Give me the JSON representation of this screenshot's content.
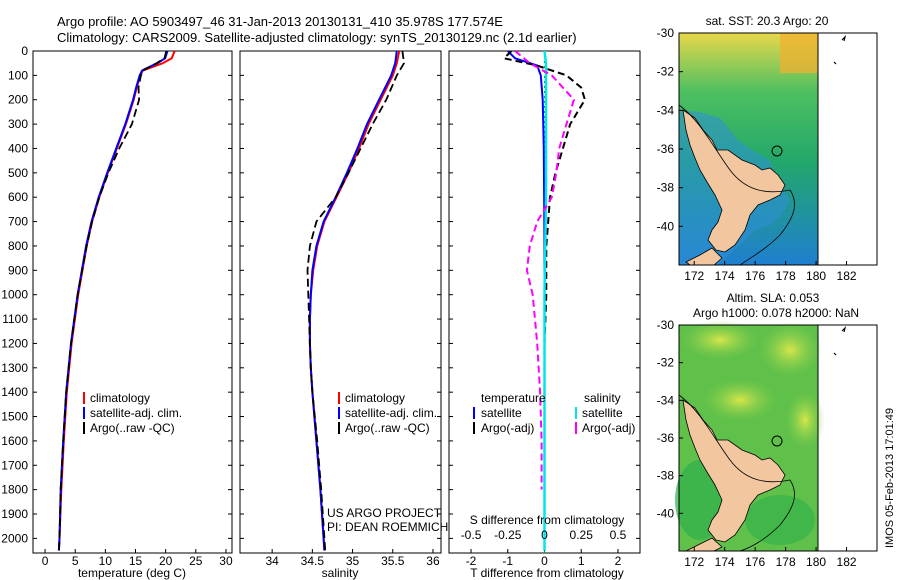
{
  "header": {
    "line1": "Argo profile: AO 5903497_46 31-Jan-2013 20130131_410 35.978S 177.574E",
    "line2": "Climatology: CARS2009. Satellite-adjusted climatology: synTS_20130129.nc (2.1d earlier)"
  },
  "colors": {
    "climatology": "#ff0000",
    "satellite": "#0000ff",
    "argo": "#000000",
    "s_sat": "#00e5ee",
    "s_argo": "#ff00ff",
    "land": "#f2c79f"
  },
  "footer": {
    "project": "US ARGO PROJECT",
    "pi": "PI: DEAN ROEMMICH"
  },
  "watermark": "IMOS 05-Feb-2013 17:01:49",
  "depth_ticks": [
    "0",
    "100",
    "200",
    "300",
    "400",
    "500",
    "600",
    "700",
    "800",
    "900",
    "1000",
    "1100",
    "1200",
    "1300",
    "1400",
    "1500",
    "1600",
    "1700",
    "1800",
    "1900",
    "2000"
  ],
  "chart_data": [
    {
      "type": "line",
      "id": "temp",
      "xlabel": "temperature (deg C)",
      "ylabel": "",
      "xlim": [
        -2,
        31
      ],
      "ylim": [
        2060,
        0
      ],
      "xticks": [
        "0",
        "5",
        "10",
        "15",
        "20",
        "25",
        "30"
      ],
      "legend": [
        "climatology",
        "satellite-adj. clim.",
        "Argo(..raw -QC)"
      ],
      "series": [
        {
          "name": "climatology",
          "depth": [
            0,
            30,
            50,
            80,
            100,
            150,
            200,
            300,
            400,
            500,
            600,
            700,
            800,
            1000,
            1200,
            1400,
            1600,
            1800,
            2000,
            2050
          ],
          "values": [
            21.5,
            21,
            19.5,
            16.2,
            15.8,
            15.2,
            14.7,
            13.4,
            11.9,
            10.4,
            9,
            7.8,
            6.9,
            5.5,
            4.4,
            3.6,
            3.1,
            2.7,
            2.4,
            2.3
          ]
        },
        {
          "name": "satellite-adj. clim.",
          "depth": [
            0,
            30,
            50,
            80,
            100,
            150,
            200,
            300,
            400,
            500,
            600,
            700,
            800,
            1000,
            1200,
            1400,
            1600,
            1800,
            2000,
            2050
          ],
          "values": [
            20.3,
            19.9,
            18.6,
            16.1,
            15.7,
            15.1,
            14.6,
            13.3,
            11.8,
            10.3,
            8.9,
            7.7,
            6.8,
            5.4,
            4.3,
            3.5,
            3,
            2.6,
            2.4,
            2.3
          ]
        },
        {
          "name": "Argo(..raw -QC)",
          "depth": [
            0,
            30,
            50,
            80,
            100,
            150,
            200,
            300,
            400,
            500,
            600,
            700,
            800,
            1000,
            1200,
            1400,
            1600,
            1800,
            2000,
            2050
          ],
          "values": [
            20.1,
            19.8,
            18.5,
            16.2,
            15.9,
            15.5,
            15.6,
            14.4,
            12.3,
            10.5,
            9,
            7.8,
            6.9,
            5.4,
            4.3,
            3.5,
            3,
            2.6,
            2.4,
            2.3
          ]
        }
      ]
    },
    {
      "type": "line",
      "id": "sal",
      "xlabel": "salinity",
      "ylabel": "",
      "xlim": [
        33.6,
        36.1
      ],
      "ylim": [
        2060,
        0
      ],
      "xticks": [
        "34",
        "34.5",
        "35",
        "35.5",
        "36"
      ],
      "legend": [
        "climatology",
        "satellite-adj. clim.",
        "Argo(..raw -QC)"
      ],
      "series": [
        {
          "name": "climatology",
          "depth": [
            0,
            50,
            100,
            200,
            300,
            400,
            500,
            600,
            700,
            800,
            900,
            1000,
            1100,
            1200,
            1300,
            1400,
            1600,
            1800,
            2000,
            2050
          ],
          "values": [
            35.58,
            35.55,
            35.5,
            35.35,
            35.2,
            35.08,
            34.95,
            34.8,
            34.65,
            34.56,
            34.51,
            34.48,
            34.47,
            34.47,
            34.48,
            34.5,
            34.55,
            34.6,
            34.64,
            34.65
          ]
        },
        {
          "name": "satellite-adj. clim.",
          "depth": [
            0,
            50,
            100,
            200,
            300,
            400,
            500,
            600,
            700,
            800,
            900,
            1000,
            1100,
            1200,
            1300,
            1400,
            1600,
            1800,
            2000,
            2050
          ],
          "values": [
            35.55,
            35.53,
            35.48,
            35.33,
            35.18,
            35.06,
            34.93,
            34.79,
            34.64,
            34.55,
            34.5,
            34.48,
            34.47,
            34.47,
            34.48,
            34.5,
            34.55,
            34.6,
            34.64,
            34.65
          ]
        },
        {
          "name": "Argo(..raw -QC)",
          "depth": [
            0,
            50,
            100,
            200,
            300,
            400,
            500,
            600,
            700,
            800,
            900,
            1000,
            1100,
            1200,
            1300,
            1400,
            1600,
            1800,
            2000,
            2050
          ],
          "values": [
            35.62,
            35.64,
            35.55,
            35.42,
            35.25,
            35.1,
            34.95,
            34.79,
            34.55,
            34.47,
            34.44,
            34.45,
            34.46,
            34.47,
            34.48,
            34.5,
            34.56,
            34.61,
            34.65,
            34.66
          ]
        }
      ]
    },
    {
      "type": "line",
      "id": "diff",
      "xlabel": "T difference from climatology",
      "ylabel": "",
      "xlim": [
        -2.6,
        2.6
      ],
      "ylim": [
        2060,
        0
      ],
      "xticks": [
        "-2",
        "-1",
        "0",
        "1",
        "2"
      ],
      "top_label": "S difference from climatology",
      "top_ticks": [
        "-0.5",
        "-0.25",
        "0",
        "0.25",
        "0.5"
      ],
      "legend_left_title": "temperature",
      "legend_right_title": "salinity",
      "legend": [
        "satellite",
        "Argo(-adj)",
        "satellite",
        "Argo(-adj)"
      ],
      "series": [
        {
          "name": "temperature satellite",
          "depth": [
            0,
            30,
            60,
            100,
            200,
            400,
            800,
            1200,
            1600,
            2050
          ],
          "values": [
            -1,
            -0.8,
            -0.2,
            -0.1,
            -0.05,
            -0.02,
            0,
            0,
            0,
            0
          ]
        },
        {
          "name": "temperature Argo(-adj)",
          "depth": [
            0,
            30,
            60,
            100,
            150,
            200,
            250,
            300,
            400,
            500,
            600,
            700,
            800,
            1000,
            1200,
            1400,
            1600,
            1800,
            2050
          ],
          "values": [
            -0.9,
            -1.1,
            -0.2,
            0.6,
            1.0,
            1.1,
            0.9,
            0.7,
            0.5,
            0.3,
            0.15,
            0.1,
            0.05,
            0.05,
            0,
            0,
            0,
            0,
            0
          ]
        },
        {
          "name": "salinity satellite",
          "depth": [
            0,
            50,
            100,
            300,
            600,
            1000,
            1500,
            2050
          ],
          "values": [
            0,
            0.01,
            0.01,
            0.01,
            0.01,
            0,
            0,
            0
          ]
        },
        {
          "name": "salinity Argo(-adj)",
          "depth": [
            0,
            50,
            100,
            200,
            300,
            400,
            500,
            600,
            700,
            800,
            900,
            1000,
            1200,
            1400,
            1600,
            1800
          ],
          "values": [
            -0.2,
            -0.1,
            0.05,
            0.2,
            0.15,
            0.1,
            0.08,
            0.05,
            -0.05,
            -0.1,
            -0.12,
            -0.08,
            -0.05,
            -0.03,
            -0.02,
            -0.02
          ]
        }
      ]
    },
    {
      "type": "heatmap",
      "id": "sst_map",
      "title": "sat. SST: 20.3 Argo: 20",
      "xlim": [
        171,
        184
      ],
      "ylim": [
        -42,
        -30
      ],
      "xticks": [
        "172",
        "174",
        "176",
        "178",
        "180",
        "182"
      ],
      "yticks": [
        "-30",
        "-32",
        "-34",
        "-36",
        "-38",
        "-40"
      ],
      "argo_position": [
        177.574,
        -35.978
      ]
    },
    {
      "type": "heatmap",
      "id": "sla_map",
      "title": "Altim. SLA: 0.053",
      "subtitle": "Argo h1000: 0.078 h2000: NaN",
      "xlim": [
        171,
        184
      ],
      "ylim": [
        -42,
        -30
      ],
      "xticks": [
        "172",
        "174",
        "176",
        "178",
        "180",
        "182"
      ],
      "yticks": [
        "-30",
        "-32",
        "-34",
        "-36",
        "-38",
        "-40"
      ],
      "argo_position": [
        177.574,
        -35.978
      ]
    }
  ]
}
